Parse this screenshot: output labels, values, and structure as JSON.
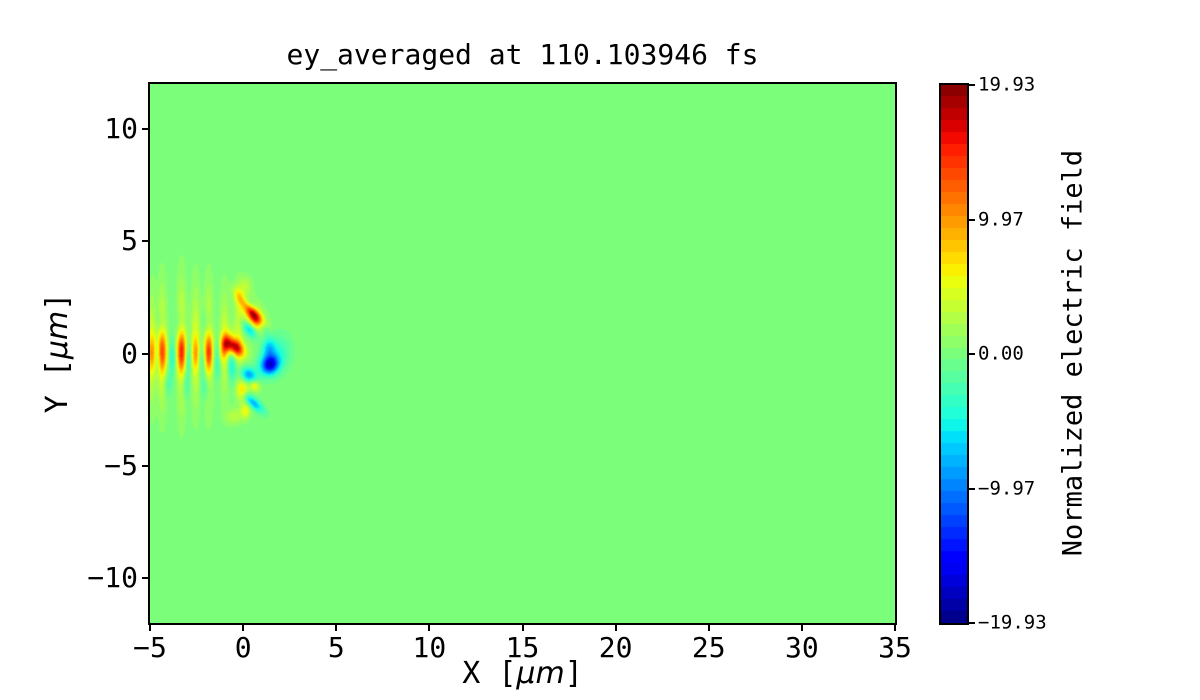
{
  "chart_data": {
    "type": "heatmap",
    "title": "ey_averaged at 110.103946 fs",
    "xlabel": {
      "prefix": "X [",
      "unit": "μm",
      "suffix": "]"
    },
    "ylabel": {
      "prefix": "Y [",
      "unit": "μm",
      "suffix": "]"
    },
    "xlim": [
      -5,
      35
    ],
    "ylim": [
      -12,
      12
    ],
    "x_ticks": [
      "−5",
      "0",
      "5",
      "10",
      "15",
      "20",
      "25",
      "30",
      "35"
    ],
    "x_tick_values": [
      -5,
      0,
      5,
      10,
      15,
      20,
      25,
      30,
      35
    ],
    "y_ticks": [
      "10",
      "5",
      "0",
      "−5",
      "−10"
    ],
    "y_tick_values": [
      10,
      5,
      0,
      -5,
      -10
    ],
    "grid": false,
    "colormap": "jet",
    "n_levels": 45,
    "vmin": -19.93,
    "vmax": 19.93,
    "background_value": 0.0,
    "colorbar": {
      "label": "Normalized electric field",
      "tick_labels": [
        "19.93",
        "9.97",
        "0.00",
        "−9.97",
        "−19.93"
      ],
      "tick_values": [
        19.93,
        9.965,
        0.0,
        -9.965,
        -19.93
      ]
    },
    "field_features": {
      "description": "Laser pulse near y=0 spanning x=-5..2.2 um: vertical yellow/orange stripes (wavelength ~0.8 um) with red cores on axis, cyan troughs, and strong red/blue blobs at the pulse front",
      "blob_fields": [
        "x",
        "y",
        "sigma_x",
        "sigma_y",
        "rot_deg",
        "amplitude"
      ],
      "blobs": [
        [
          -4.9,
          0.2,
          0.16,
          1.55,
          0,
          4.5
        ],
        [
          -4.35,
          0.25,
          0.17,
          1.7,
          0,
          5.5
        ],
        [
          -3.3,
          0.3,
          0.17,
          1.8,
          0,
          6.0
        ],
        [
          -2.55,
          0.3,
          0.16,
          1.7,
          0,
          4.8
        ],
        [
          -1.85,
          0.3,
          0.17,
          1.65,
          0,
          5.5
        ],
        [
          -1.0,
          0.4,
          0.16,
          1.45,
          0,
          4.5
        ],
        [
          -0.25,
          1.0,
          0.18,
          1.2,
          0,
          3.2
        ],
        [
          -4.9,
          0.0,
          0.18,
          0.55,
          0,
          6.0
        ],
        [
          -4.35,
          0.05,
          0.2,
          0.6,
          0,
          8.5
        ],
        [
          -3.3,
          0.05,
          0.2,
          0.6,
          0,
          9.5
        ],
        [
          -2.55,
          0.0,
          0.17,
          0.5,
          0,
          5.5
        ],
        [
          -1.85,
          0.05,
          0.19,
          0.55,
          0,
          9.0
        ],
        [
          -1.0,
          0.3,
          0.2,
          0.5,
          -25,
          6.5
        ],
        [
          -4.6,
          -0.1,
          0.13,
          0.5,
          0,
          -3.5
        ],
        [
          -3.8,
          -0.15,
          0.14,
          0.55,
          0,
          -4.5
        ],
        [
          -2.95,
          -0.2,
          0.14,
          0.5,
          0,
          -4.5
        ],
        [
          -2.2,
          -0.25,
          0.14,
          0.5,
          0,
          -4.0
        ],
        [
          -1.4,
          -0.2,
          0.15,
          0.55,
          0,
          -5.5
        ],
        [
          -0.6,
          -0.5,
          0.16,
          0.5,
          0,
          -5.0
        ],
        [
          -3.35,
          1.35,
          0.18,
          0.45,
          0,
          -3.0
        ],
        [
          -1.9,
          1.3,
          0.18,
          0.45,
          0,
          -3.0
        ],
        [
          -4.4,
          1.35,
          0.16,
          0.4,
          0,
          -2.5
        ],
        [
          -3.1,
          -1.35,
          0.18,
          0.45,
          0,
          -3.2
        ],
        [
          -2.0,
          -1.45,
          0.18,
          0.45,
          0,
          -3.2
        ],
        [
          -4.05,
          -1.3,
          0.16,
          0.4,
          0,
          -2.5
        ],
        [
          0.6,
          1.7,
          0.45,
          0.2,
          -50,
          15.5
        ],
        [
          0.52,
          1.72,
          0.6,
          0.34,
          -50,
          5.0
        ],
        [
          -0.48,
          0.3,
          0.38,
          0.22,
          -30,
          13.5
        ],
        [
          -0.45,
          0.3,
          0.55,
          0.34,
          -30,
          4.0
        ],
        [
          1.45,
          -0.5,
          0.32,
          0.27,
          20,
          -13.0
        ],
        [
          1.4,
          -0.45,
          0.48,
          0.4,
          20,
          -4.0
        ],
        [
          1.38,
          0.25,
          0.24,
          0.32,
          0,
          -6.0
        ],
        [
          0.35,
          1.05,
          0.32,
          0.17,
          -40,
          -7.0
        ],
        [
          0.3,
          -0.95,
          0.3,
          0.22,
          -20,
          -8.5
        ],
        [
          -0.05,
          -1.65,
          0.22,
          0.3,
          0,
          7.5
        ],
        [
          0.55,
          -2.2,
          0.45,
          0.16,
          -35,
          -8.0
        ],
        [
          0.12,
          -2.55,
          0.19,
          0.24,
          0,
          5.5
        ],
        [
          0.45,
          2.15,
          0.3,
          0.15,
          -45,
          -5.5
        ],
        [
          -0.2,
          2.5,
          0.34,
          0.17,
          -55,
          5.5
        ],
        [
          1.95,
          0.15,
          0.42,
          0.5,
          0,
          -3.0
        ],
        [
          0.62,
          -1.45,
          0.2,
          0.16,
          -30,
          6.0
        ],
        [
          1.05,
          1.15,
          0.3,
          0.15,
          -50,
          -4.5
        ],
        [
          0.1,
          3.0,
          0.25,
          0.3,
          0,
          3.0
        ],
        [
          -0.5,
          -2.8,
          0.3,
          0.25,
          0,
          3.0
        ]
      ]
    }
  }
}
